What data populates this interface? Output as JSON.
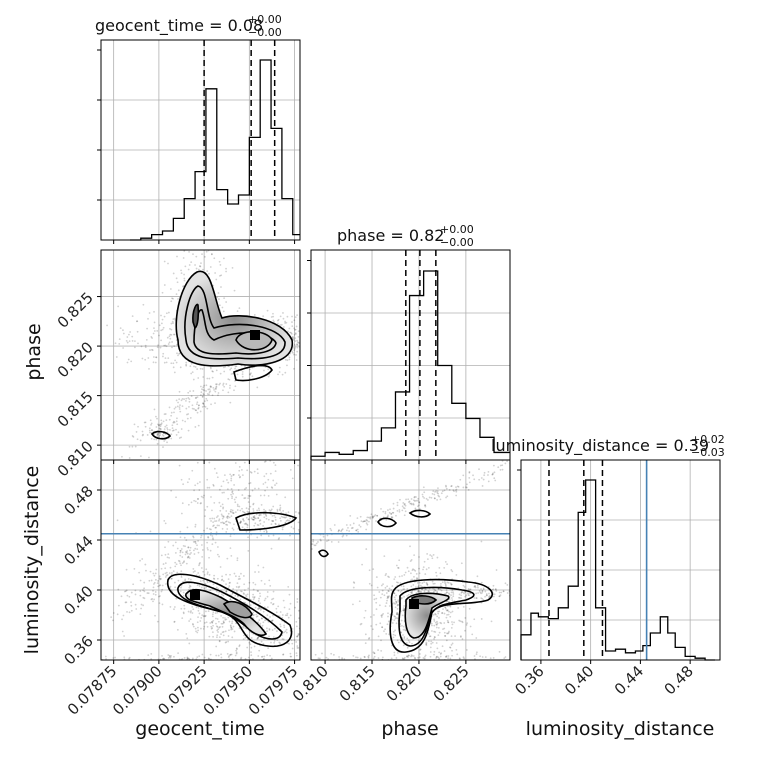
{
  "chart_data": {
    "type": "corner",
    "parameters": [
      {
        "name": "geocent_time",
        "axis_label": "geocent_time",
        "title_prefix": "geocent_time = 0.08",
        "title_plus": "+0.00",
        "title_minus": "−0.00",
        "range": [
          0.07868,
          0.07978
        ],
        "ticks": [
          0.07875,
          0.079,
          0.07925,
          0.0795,
          0.07975
        ],
        "tick_labels": [
          "0.07875",
          "0.07900",
          "0.07925",
          "0.07950",
          "0.07975"
        ],
        "quantile_lines": [
          0.07925,
          0.07951,
          0.07964
        ],
        "histogram": {
          "edges": [
            0.07884,
            0.0789,
            0.07896,
            0.07902,
            0.07908,
            0.07914,
            0.0792,
            0.07926,
            0.07932,
            0.07938,
            0.07944,
            0.0795,
            0.07956,
            0.07962,
            0.07968,
            0.07974,
            0.0798
          ],
          "counts": [
            0.0,
            0.01,
            0.03,
            0.05,
            0.12,
            0.23,
            0.38,
            0.84,
            0.28,
            0.2,
            0.25,
            0.57,
            1.0,
            0.62,
            0.23,
            0.03
          ]
        }
      },
      {
        "name": "phase",
        "axis_label": "phase",
        "title_prefix": "phase = 0.82",
        "title_plus": "+0.00",
        "title_minus": "−0.00",
        "range": [
          0.8085,
          0.8297
        ],
        "ticks": [
          0.81,
          0.815,
          0.82,
          0.825
        ],
        "tick_labels": [
          "0.810",
          "0.815",
          "0.820",
          "0.825"
        ],
        "quantile_lines": [
          0.8186,
          0.8201,
          0.8218
        ],
        "histogram": {
          "edges": [
            0.8085,
            0.81,
            0.8115,
            0.813,
            0.8145,
            0.816,
            0.8175,
            0.819,
            0.8205,
            0.822,
            0.8235,
            0.825,
            0.8265,
            0.828,
            0.8297
          ],
          "counts": [
            0.02,
            0.04,
            0.03,
            0.05,
            0.1,
            0.17,
            0.36,
            0.87,
            1.0,
            0.5,
            0.3,
            0.22,
            0.12,
            0.04
          ]
        }
      },
      {
        "name": "luminosity_distance",
        "axis_label": "luminosity_distance",
        "title_prefix": "luminosity_distance = 0.39",
        "title_plus": "+0.02",
        "title_minus": "−0.03",
        "range": [
          0.344,
          0.504
        ],
        "ticks": [
          0.36,
          0.4,
          0.44,
          0.48
        ],
        "tick_labels": [
          "0.36",
          "0.40",
          "0.44",
          "0.48"
        ],
        "quantile_lines": [
          0.3665,
          0.3945,
          0.4095
        ],
        "truth": 0.445,
        "histogram": {
          "edges": [
            0.344,
            0.352,
            0.358,
            0.366,
            0.374,
            0.382,
            0.39,
            0.396,
            0.404,
            0.412,
            0.42,
            0.428,
            0.436,
            0.442,
            0.448,
            0.456,
            0.462,
            0.468,
            0.476,
            0.484,
            0.492,
            0.5
          ],
          "counts": [
            0.14,
            0.26,
            0.24,
            0.23,
            0.29,
            0.41,
            0.82,
            1.0,
            0.29,
            0.05,
            0.06,
            0.04,
            0.05,
            0.08,
            0.15,
            0.24,
            0.15,
            0.07,
            0.02,
            0.01,
            0.0
          ]
        }
      }
    ],
    "truth_color": "#4682b4"
  }
}
